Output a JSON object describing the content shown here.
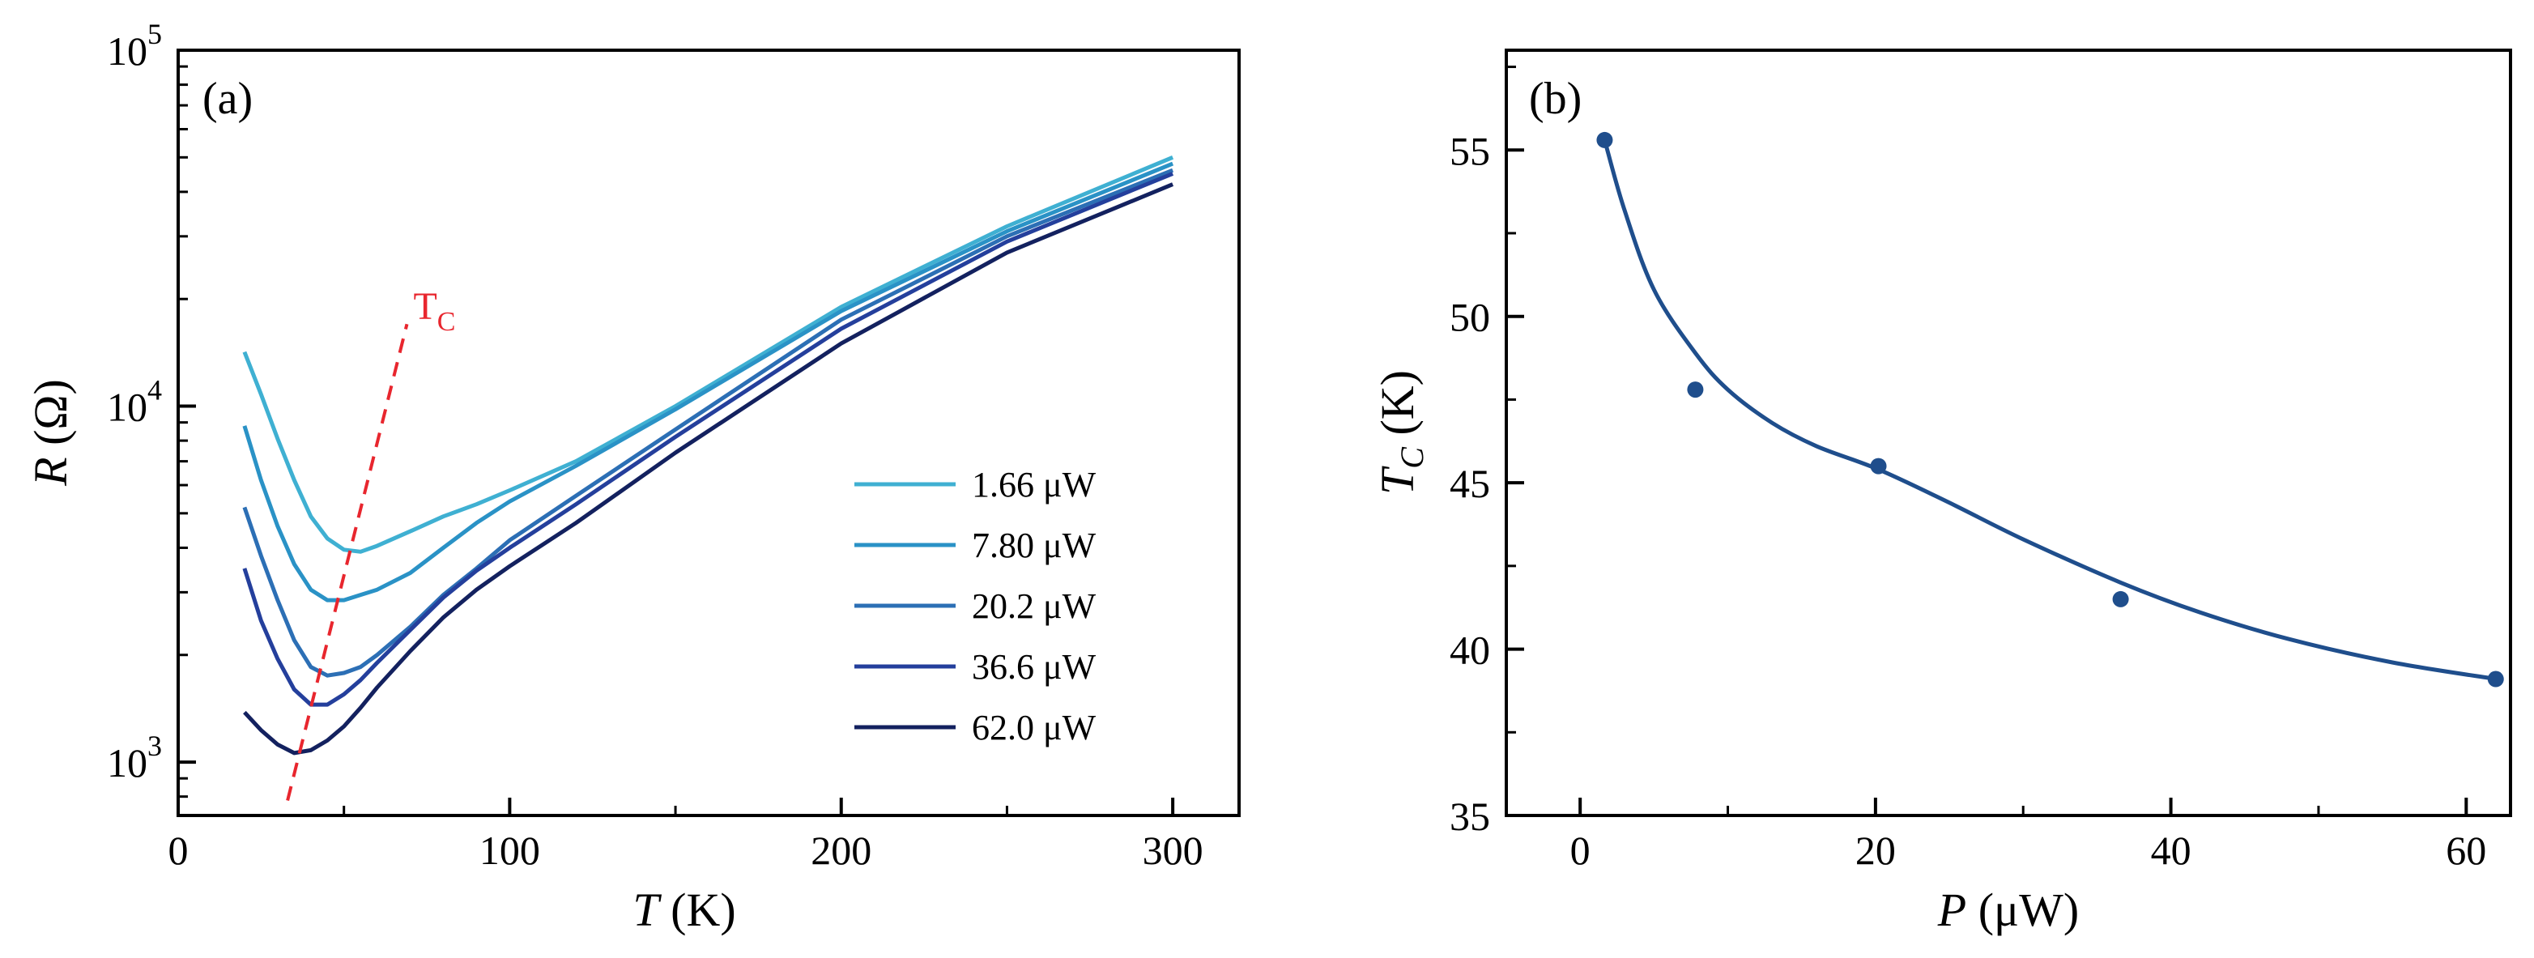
{
  "chart_data": [
    {
      "id": "a",
      "panel_label": "(a)",
      "type": "line",
      "yscale": "log",
      "xlabel": {
        "var": "T",
        "unit": " (K)"
      },
      "ylabel": {
        "var": "R",
        "unit": " (Ω)"
      },
      "xlim": [
        0,
        320
      ],
      "ylim_log10": [
        2.85,
        5.0
      ],
      "xticks": [
        0,
        100,
        200,
        300
      ],
      "xtick_labels": [
        "0",
        "100",
        "200",
        "300"
      ],
      "yticks_exp": [
        3,
        4,
        5
      ],
      "ytick_base": "10",
      "ytick_exps": [
        "3",
        "4",
        "5"
      ],
      "series": [
        {
          "name": "1.66 μW",
          "color": "#3fb0d2",
          "x": [
            20,
            25,
            30,
            35,
            40,
            45,
            50,
            55,
            60,
            70,
            80,
            90,
            100,
            120,
            150,
            200,
            250,
            300
          ],
          "y": [
            14200,
            10800,
            8100,
            6200,
            4900,
            4250,
            3950,
            3900,
            4050,
            4450,
            4900,
            5300,
            5800,
            7000,
            10000,
            19000,
            32000,
            50000
          ]
        },
        {
          "name": "7.80 μW",
          "color": "#2a92c6",
          "x": [
            20,
            25,
            30,
            35,
            40,
            45,
            50,
            55,
            60,
            70,
            80,
            90,
            100,
            120,
            150,
            200,
            250,
            300
          ],
          "y": [
            8800,
            6200,
            4600,
            3600,
            3050,
            2850,
            2850,
            2950,
            3050,
            3400,
            4000,
            4700,
            5400,
            6800,
            9800,
            18500,
            31000,
            48000
          ]
        },
        {
          "name": "20.2 μW",
          "color": "#2c6fb5",
          "x": [
            20,
            25,
            30,
            35,
            40,
            45,
            50,
            55,
            60,
            70,
            80,
            90,
            100,
            120,
            150,
            200,
            250,
            300
          ],
          "y": [
            5200,
            3800,
            2850,
            2200,
            1850,
            1750,
            1780,
            1850,
            2000,
            2400,
            2950,
            3500,
            4200,
            5600,
            8600,
            17500,
            30000,
            46000
          ]
        },
        {
          "name": "36.6 μW",
          "color": "#243f9c",
          "x": [
            20,
            25,
            30,
            35,
            40,
            45,
            50,
            55,
            60,
            70,
            80,
            90,
            100,
            120,
            150,
            200,
            250,
            300
          ],
          "y": [
            3500,
            2500,
            1950,
            1600,
            1450,
            1450,
            1550,
            1700,
            1900,
            2350,
            2900,
            3450,
            4000,
            5300,
            8200,
            16500,
            29000,
            45000
          ]
        },
        {
          "name": "62.0 μW",
          "color": "#13215f",
          "x": [
            20,
            25,
            30,
            35,
            40,
            45,
            50,
            55,
            60,
            70,
            80,
            90,
            100,
            120,
            150,
            200,
            250,
            300
          ],
          "y": [
            1380,
            1230,
            1120,
            1060,
            1080,
            1150,
            1260,
            1420,
            1620,
            2050,
            2550,
            3050,
            3550,
            4700,
            7400,
            15000,
            27000,
            42000
          ]
        }
      ],
      "annotation": {
        "text": "T",
        "sub": "C",
        "color": "#e8262e",
        "style": "dashed",
        "x": [
          33,
          69
        ],
        "y": [
          780,
          17000
        ]
      }
    },
    {
      "id": "b",
      "panel_label": "(b)",
      "type": "scatter",
      "xlabel": {
        "var": "P",
        "unit": " (μW)"
      },
      "ylabel": {
        "var": "T",
        "sub": "C",
        "unit": " (K)"
      },
      "xlim": [
        -5,
        63
      ],
      "ylim": [
        35,
        58
      ],
      "xticks": [
        0,
        20,
        40,
        60
      ],
      "xtick_labels": [
        "0",
        "20",
        "40",
        "60"
      ],
      "yticks": [
        35,
        40,
        45,
        50,
        55
      ],
      "ytick_labels": [
        "35",
        "40",
        "45",
        "50",
        "55"
      ],
      "color": "#1f4e8c",
      "points": {
        "x": [
          1.66,
          7.8,
          20.2,
          36.6,
          62.0
        ],
        "y": [
          55.3,
          47.8,
          45.5,
          41.5,
          39.1
        ]
      },
      "fit": {
        "x": [
          1.66,
          3,
          5,
          7.8,
          10,
          13,
          16,
          20.2,
          25,
          30,
          36.6,
          42,
          48,
          55,
          62.0
        ],
        "y": [
          55.3,
          53.2,
          50.8,
          48.9,
          47.8,
          46.8,
          46.1,
          45.4,
          44.4,
          43.3,
          42.0,
          41.1,
          40.3,
          39.6,
          39.1
        ]
      }
    }
  ]
}
